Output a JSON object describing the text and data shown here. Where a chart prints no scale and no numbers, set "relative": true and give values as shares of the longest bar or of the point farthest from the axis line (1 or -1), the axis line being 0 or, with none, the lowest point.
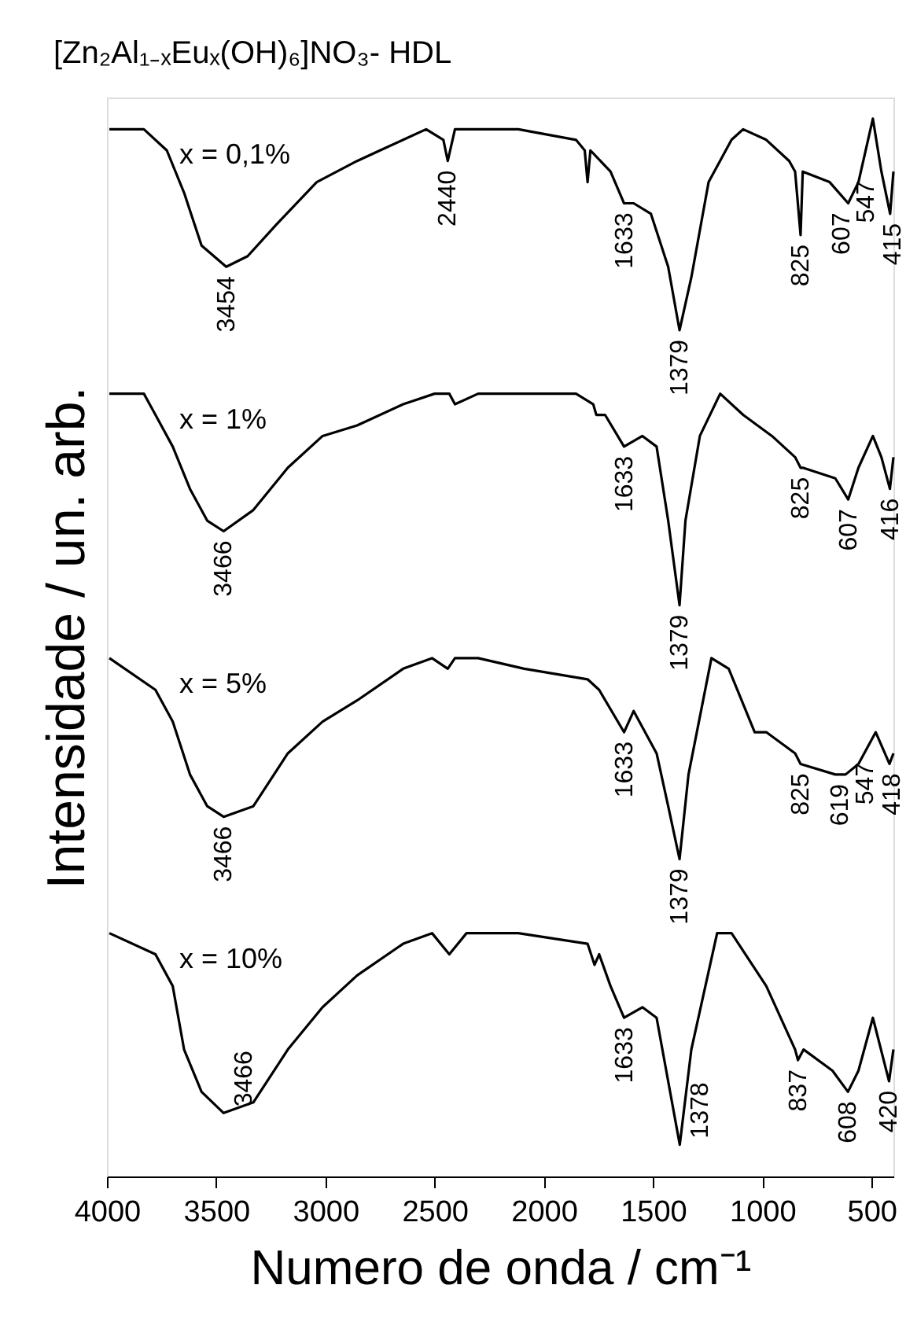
{
  "chart_data": {
    "type": "line",
    "title": "[Zn₂Al₁₋ₓEuₓ(OH)₆]NO₃- HDL",
    "xlabel": "Numero de onda / cm⁻¹",
    "ylabel": "Intensidade  / un. arb.",
    "relative": true,
    "xlim": [
      4000,
      400
    ],
    "xticks": [
      4000,
      3500,
      3000,
      2500,
      2000,
      1500,
      1000,
      500
    ],
    "grid": false,
    "legend": false,
    "marker": "none",
    "line_style": "solid",
    "series": [
      {
        "name": "x = 0,1%",
        "color": "#000000",
        "x": [
          3989,
          3831,
          3726,
          3647,
          3567,
          3454,
          3356,
          3224,
          3040,
          2855,
          2750,
          2644,
          2539,
          2460,
          2440,
          2407,
          2301,
          2117,
          1853,
          1813,
          1800,
          1787,
          1695,
          1633,
          1589,
          1510,
          1431,
          1379,
          1325,
          1246,
          1141,
          1088,
          982,
          877,
          850,
          825,
          815,
          692,
          607,
          560,
          494,
          455,
          415,
          400
        ],
        "values": [
          0.99,
          0.99,
          0.97,
          0.93,
          0.88,
          0.86,
          0.87,
          0.9,
          0.94,
          0.96,
          0.97,
          0.98,
          0.99,
          0.98,
          0.96,
          0.99,
          0.99,
          0.99,
          0.98,
          0.97,
          0.94,
          0.97,
          0.95,
          0.92,
          0.92,
          0.91,
          0.86,
          0.8,
          0.85,
          0.94,
          0.98,
          0.99,
          0.98,
          0.96,
          0.95,
          0.89,
          0.95,
          0.94,
          0.92,
          0.94,
          1.0,
          0.95,
          0.91,
          0.95
        ]
      },
      {
        "name": "x = 1%",
        "color": "#000000",
        "x": [
          3989,
          3831,
          3778,
          3699,
          3620,
          3541,
          3466,
          3330,
          3172,
          3013,
          2855,
          2644,
          2500,
          2433,
          2407,
          2301,
          1853,
          1774,
          1760,
          1720,
          1633,
          1549,
          1484,
          1431,
          1379,
          1352,
          1286,
          1193,
          1088,
          956,
          850,
          825,
          815,
          666,
          607,
          560,
          494,
          455,
          416,
          400
        ],
        "values": [
          0.74,
          0.74,
          0.72,
          0.69,
          0.65,
          0.62,
          0.61,
          0.63,
          0.67,
          0.7,
          0.71,
          0.73,
          0.74,
          0.74,
          0.73,
          0.74,
          0.74,
          0.73,
          0.72,
          0.72,
          0.69,
          0.7,
          0.69,
          0.62,
          0.54,
          0.62,
          0.7,
          0.74,
          0.72,
          0.7,
          0.68,
          0.67,
          0.67,
          0.66,
          0.64,
          0.67,
          0.7,
          0.68,
          0.65,
          0.68
        ]
      },
      {
        "name": "x = 5%",
        "color": "#000000",
        "x": [
          3989,
          3778,
          3699,
          3620,
          3541,
          3466,
          3330,
          3172,
          3013,
          2855,
          2644,
          2512,
          2440,
          2407,
          2301,
          2090,
          1800,
          1747,
          1633,
          1589,
          1484,
          1431,
          1379,
          1338,
          1233,
          1154,
          1035,
          982,
          850,
          825,
          666,
          619,
          560,
          481,
          418,
          400
        ],
        "values": [
          0.49,
          0.46,
          0.43,
          0.38,
          0.35,
          0.34,
          0.35,
          0.4,
          0.43,
          0.45,
          0.48,
          0.49,
          0.48,
          0.49,
          0.49,
          0.48,
          0.47,
          0.46,
          0.42,
          0.44,
          0.4,
          0.35,
          0.3,
          0.38,
          0.49,
          0.48,
          0.42,
          0.42,
          0.4,
          0.39,
          0.38,
          0.38,
          0.39,
          0.42,
          0.39,
          0.4
        ]
      },
      {
        "name": "x = 10%",
        "color": "#000000",
        "x": [
          3989,
          3778,
          3699,
          3647,
          3567,
          3466,
          3330,
          3172,
          3013,
          2855,
          2644,
          2512,
          2433,
          2354,
          2117,
          1800,
          1768,
          1747,
          1695,
          1633,
          1549,
          1484,
          1431,
          1378,
          1325,
          1207,
          1141,
          982,
          850,
          837,
          811,
          679,
          608,
          560,
          494,
          420,
          400
        ],
        "values": [
          0.23,
          0.21,
          0.18,
          0.12,
          0.08,
          0.06,
          0.07,
          0.12,
          0.16,
          0.19,
          0.22,
          0.23,
          0.21,
          0.23,
          0.23,
          0.22,
          0.2,
          0.21,
          0.18,
          0.15,
          0.16,
          0.15,
          0.09,
          0.03,
          0.12,
          0.23,
          0.23,
          0.18,
          0.12,
          0.11,
          0.12,
          0.1,
          0.08,
          0.1,
          0.15,
          0.09,
          0.12
        ]
      }
    ],
    "annotations": [
      {
        "text": "3454",
        "x": 3454,
        "y": 0.86
      },
      {
        "text": "2440",
        "x": 2440,
        "y": 0.96
      },
      {
        "text": "1633",
        "x": 1633,
        "y": 0.92
      },
      {
        "text": "1379",
        "x": 1379,
        "y": 0.8
      },
      {
        "text": "825",
        "x": 825,
        "y": 0.89
      },
      {
        "text": "607",
        "x": 607,
        "y": 0.92
      },
      {
        "text": "547",
        "x": 547,
        "y": 0.95
      },
      {
        "text": "415",
        "x": 415,
        "y": 0.91
      },
      {
        "text": "3466",
        "x": 3466,
        "y": 0.61
      },
      {
        "text": "1633",
        "x": 1633,
        "y": 0.69
      },
      {
        "text": "1379",
        "x": 1379,
        "y": 0.54
      },
      {
        "text": "825",
        "x": 825,
        "y": 0.67
      },
      {
        "text": "607",
        "x": 607,
        "y": 0.64
      },
      {
        "text": "416",
        "x": 416,
        "y": 0.65
      },
      {
        "text": "3466",
        "x": 3466,
        "y": 0.34
      },
      {
        "text": "1633",
        "x": 1633,
        "y": 0.42
      },
      {
        "text": "1379",
        "x": 1379,
        "y": 0.3
      },
      {
        "text": "825",
        "x": 825,
        "y": 0.39
      },
      {
        "text": "619",
        "x": 619,
        "y": 0.38
      },
      {
        "text": "547",
        "x": 547,
        "y": 0.4
      },
      {
        "text": "418",
        "x": 418,
        "y": 0.39
      },
      {
        "text": "3466",
        "x": 3466,
        "y": 0.06
      },
      {
        "text": "1633",
        "x": 1633,
        "y": 0.15
      },
      {
        "text": "1378",
        "x": 1378,
        "y": 0.03
      },
      {
        "text": "837",
        "x": 837,
        "y": 0.11
      },
      {
        "text": "608",
        "x": 608,
        "y": 0.08
      },
      {
        "text": "420",
        "x": 420,
        "y": 0.09
      }
    ]
  }
}
